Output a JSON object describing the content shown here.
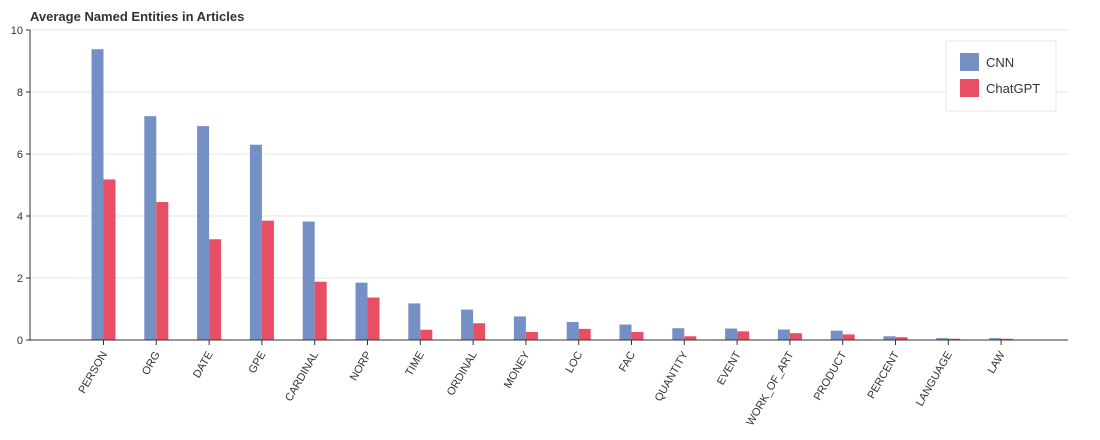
{
  "chart_data": {
    "type": "bar",
    "title": "Average Named Entities in Articles",
    "xlabel": "",
    "ylabel": "",
    "ylim": [
      0,
      10
    ],
    "yticks": [
      0,
      2,
      4,
      6,
      8,
      10
    ],
    "grid": "horizontal",
    "legend_position": "top-right",
    "categories": [
      "PERSON",
      "ORG",
      "DATE",
      "GPE",
      "CARDINAL",
      "NORP",
      "TIME",
      "ORDINAL",
      "MONEY",
      "LOC",
      "FAC",
      "QUANTITY",
      "EVENT",
      "WORK_OF_ART",
      "PRODUCT",
      "PERCENT",
      "LANGUAGE",
      "LAW"
    ],
    "series": [
      {
        "name": "CNN",
        "color": "#7490c4",
        "values": [
          9.38,
          7.22,
          6.9,
          6.3,
          3.82,
          1.85,
          1.18,
          0.98,
          0.76,
          0.58,
          0.5,
          0.38,
          0.37,
          0.34,
          0.3,
          0.12,
          0.06,
          0.06
        ]
      },
      {
        "name": "ChatGPT",
        "color": "#e94f64",
        "values": [
          5.18,
          4.45,
          3.25,
          3.85,
          1.88,
          1.37,
          0.33,
          0.54,
          0.26,
          0.36,
          0.26,
          0.12,
          0.28,
          0.22,
          0.18,
          0.09,
          0.04,
          0.04
        ]
      }
    ]
  }
}
